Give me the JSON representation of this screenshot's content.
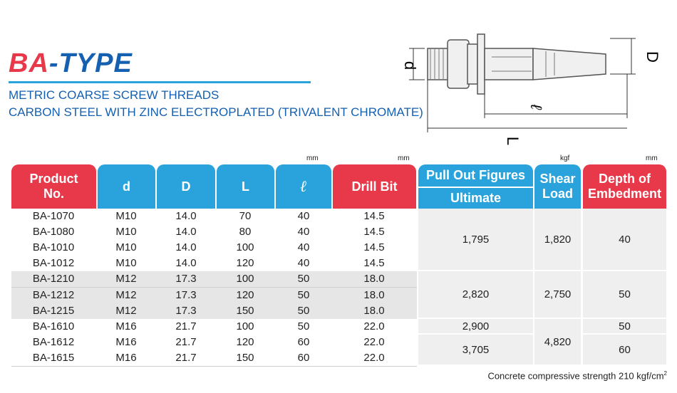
{
  "header": {
    "title_main": "BA",
    "title_accent": "-TYPE",
    "subtitle": [
      "METRIC COARSE SCREW THREADS",
      "CARBON STEEL WITH ZINC ELECTROPLATED (TRIVALENT CHROMATE)"
    ]
  },
  "diagram": {
    "labels": [
      "d",
      "D",
      "ℓ",
      "L"
    ]
  },
  "table": {
    "units": [
      "mm",
      "mm",
      "kgf",
      "mm"
    ],
    "columns": [
      "Product No.",
      "d",
      "D",
      "L",
      "ℓ",
      "Drill Bit",
      "Pull Out Figures",
      "Ultimate",
      "Shear Load",
      "Depth of Embedment"
    ],
    "rows": [
      [
        "BA-1070",
        "M10",
        "14.0",
        "70",
        "40",
        "14.5"
      ],
      [
        "BA-1080",
        "M10",
        "14.0",
        "80",
        "40",
        "14.5"
      ],
      [
        "BA-1010",
        "M10",
        "14.0",
        "100",
        "40",
        "14.5"
      ],
      [
        "BA-1012",
        "M10",
        "14.0",
        "120",
        "40",
        "14.5"
      ],
      [
        "BA-1210",
        "M12",
        "17.3",
        "100",
        "50",
        "18.0"
      ],
      [
        "BA-1212",
        "M12",
        "17.3",
        "120",
        "50",
        "18.0"
      ],
      [
        "BA-1215",
        "M12",
        "17.3",
        "150",
        "50",
        "18.0"
      ],
      [
        "BA-1610",
        "M16",
        "21.7",
        "100",
        "50",
        "22.0"
      ],
      [
        "BA-1612",
        "M16",
        "21.7",
        "120",
        "60",
        "22.0"
      ],
      [
        "BA-1615",
        "M16",
        "21.7",
        "150",
        "60",
        "22.0"
      ]
    ],
    "pull_out": [
      "1,795",
      "2,820",
      "2,900",
      "3,705"
    ],
    "shear": [
      "1,820",
      "2,750",
      "4,820"
    ],
    "depth": [
      "40",
      "50",
      "50",
      "60"
    ]
  },
  "footnote": {
    "text": "Concrete compressive strength 210 kgf/cm",
    "superscript": "2"
  }
}
